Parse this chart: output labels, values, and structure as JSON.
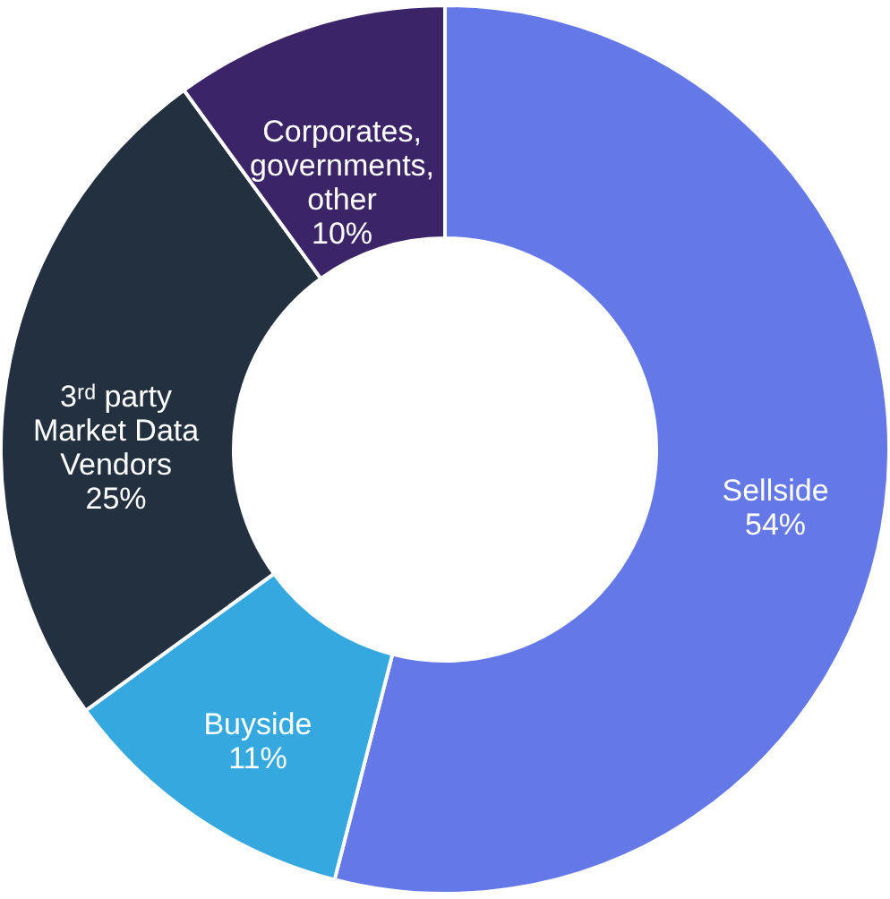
{
  "chart_data": {
    "type": "donut",
    "categories": [
      "Sellside",
      "Buyside",
      "3ʳᵈ party Market Data Vendors",
      "Corporates, governments, other"
    ],
    "values": [
      54,
      11,
      25,
      10
    ],
    "colors": [
      "#6478e8",
      "#35a8e0",
      "#233040",
      "#3b2468"
    ],
    "value_labels": [
      "54%",
      "11%",
      "25%",
      "10%"
    ],
    "legend": false
  }
}
